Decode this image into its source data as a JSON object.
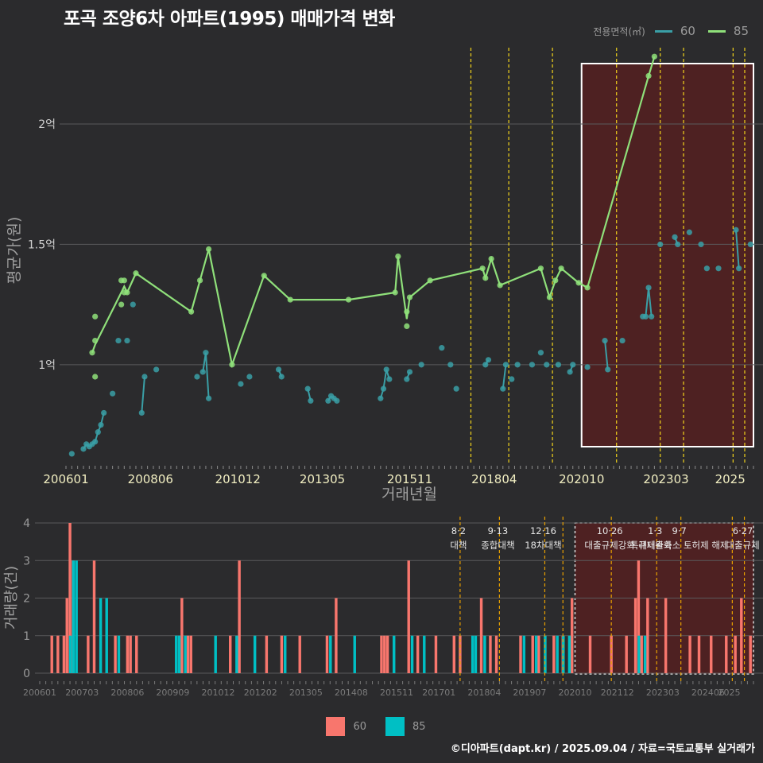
{
  "title": "포곡 조양6차 아파트(1995) 매매가격 변화",
  "credit": "©디아파트(dapt.kr) / 2025.09.04 / 자료=국토교통부 실거래가",
  "colors": {
    "background": "#2b2b2d",
    "grid": "#5a5a5c",
    "area60": "#3a9fa6",
    "area85": "#8fe07a",
    "bar60": "#f8766d",
    "bar85": "#00bfc4",
    "policy": "#f3d41b",
    "highlight": "#6b1a1a"
  },
  "legend_top": {
    "title": "전용면적(㎡)",
    "items": [
      {
        "label": "60",
        "color": "#3a9fa6"
      },
      {
        "label": "85",
        "color": "#8fe07a"
      }
    ]
  },
  "legend_bottom": {
    "items": [
      {
        "label": "60",
        "color": "#f8766d"
      },
      {
        "label": "85",
        "color": "#00bfc4"
      }
    ]
  },
  "chart_data": [
    {
      "type": "line",
      "xlabel": "거래년월",
      "ylabel": "평균가(원)",
      "x_ticks": [
        "200601",
        "200806",
        "201012",
        "201305",
        "201511",
        "201804",
        "202010",
        "202303",
        "2025"
      ],
      "y_ticks": [
        {
          "value": 1.0,
          "label": "1억"
        },
        {
          "value": 1.5,
          "label": "1.5억"
        },
        {
          "value": 2.0,
          "label": "2억"
        }
      ],
      "ylim": [
        0.6,
        2.35
      ],
      "series": [
        {
          "name": "60",
          "points": [
            [
              "2006-03",
              0.63
            ],
            [
              "2006-07",
              0.65
            ],
            [
              "2006-08",
              0.67
            ],
            [
              "2006-09",
              0.66
            ],
            [
              "2006-10",
              0.67
            ],
            [
              "2006-11",
              0.68
            ],
            [
              "2006-12",
              0.72
            ],
            [
              "2007-01",
              0.75
            ],
            [
              "2007-02",
              0.8
            ],
            [
              "2007-05",
              0.88
            ],
            [
              "2007-07",
              1.1
            ],
            [
              "2007-10",
              1.1
            ],
            [
              "2007-12",
              1.25
            ],
            [
              "2008-03",
              0.8
            ],
            [
              "2008-04",
              0.95
            ],
            [
              "2008-08",
              0.98
            ],
            [
              "2009-10",
              0.95
            ],
            [
              "2009-12",
              0.97
            ],
            [
              "2010-01",
              1.05
            ],
            [
              "2010-02",
              0.86
            ],
            [
              "2011-01",
              0.92
            ],
            [
              "2011-04",
              0.95
            ],
            [
              "2012-02",
              0.98
            ],
            [
              "2012-03",
              0.95
            ],
            [
              "2012-12",
              0.9
            ],
            [
              "2013-01",
              0.85
            ],
            [
              "2013-07",
              0.85
            ],
            [
              "2013-08",
              0.87
            ],
            [
              "2013-09",
              0.86
            ],
            [
              "2013-10",
              0.85
            ],
            [
              "2015-01",
              0.86
            ],
            [
              "2015-02",
              0.9
            ],
            [
              "2015-03",
              0.98
            ],
            [
              "2015-04",
              0.94
            ],
            [
              "2015-10",
              0.94
            ],
            [
              "2015-11",
              0.97
            ],
            [
              "2016-03",
              1.0
            ],
            [
              "2016-10",
              1.07
            ],
            [
              "2017-01",
              1.0
            ],
            [
              "2017-03",
              0.9
            ],
            [
              "2018-01",
              1.0
            ],
            [
              "2018-02",
              1.02
            ],
            [
              "2018-07",
              0.9
            ],
            [
              "2018-08",
              1.0
            ],
            [
              "2018-10",
              0.94
            ],
            [
              "2018-12",
              1.0
            ],
            [
              "2019-05",
              1.0
            ],
            [
              "2019-08",
              1.05
            ],
            [
              "2019-10",
              1.0
            ],
            [
              "2020-02",
              1.0
            ],
            [
              "2020-06",
              0.97
            ],
            [
              "2020-07",
              1.0
            ],
            [
              "2020-12",
              0.99
            ],
            [
              "2021-06",
              1.1
            ],
            [
              "2021-07",
              0.98
            ],
            [
              "2021-12",
              1.1
            ],
            [
              "2022-07",
              1.2
            ],
            [
              "2022-08",
              1.2
            ],
            [
              "2022-09",
              1.32
            ],
            [
              "2022-10",
              1.2
            ],
            [
              "2023-01",
              1.5
            ],
            [
              "2023-06",
              1.53
            ],
            [
              "2023-07",
              1.5
            ],
            [
              "2023-11",
              1.55
            ],
            [
              "2024-03",
              1.5
            ],
            [
              "2024-05",
              1.4
            ],
            [
              "2024-09",
              1.4
            ],
            [
              "2025-03",
              1.56
            ],
            [
              "2025-04",
              1.4
            ],
            [
              "2025-08",
              1.5
            ]
          ]
        },
        {
          "name": "85",
          "points": [
            [
              "2006-10",
              1.05
            ],
            [
              "2006-11",
              1.1
            ],
            [
              "2006-11",
              1.2
            ],
            [
              "2006-11",
              0.95
            ],
            [
              "2007-09",
              1.3
            ],
            [
              "2007-08",
              1.25
            ],
            [
              "2007-08",
              1.35
            ],
            [
              "2007-09",
              1.35
            ],
            [
              "2007-10",
              1.3
            ],
            [
              "2008-01",
              1.38
            ],
            [
              "2009-08",
              1.22
            ],
            [
              "2009-11",
              1.35
            ],
            [
              "2010-02",
              1.48
            ],
            [
              "2010-10",
              1.0
            ],
            [
              "2011-09",
              1.37
            ],
            [
              "2012-06",
              1.27
            ],
            [
              "2014-02",
              1.27
            ],
            [
              "2015-06",
              1.3
            ],
            [
              "2015-07",
              1.45
            ],
            [
              "2015-10",
              1.22
            ],
            [
              "2015-10",
              1.16
            ],
            [
              "2015-11",
              1.28
            ],
            [
              "2016-06",
              1.35
            ],
            [
              "2017-12",
              1.4
            ],
            [
              "2018-01",
              1.36
            ],
            [
              "2018-03",
              1.44
            ],
            [
              "2018-06",
              1.33
            ],
            [
              "2019-08",
              1.4
            ],
            [
              "2019-11",
              1.28
            ],
            [
              "2020-01",
              1.35
            ],
            [
              "2020-03",
              1.4
            ],
            [
              "2020-09",
              1.34
            ],
            [
              "2020-12",
              1.32
            ],
            [
              "2022-09",
              2.2
            ],
            [
              "2022-11",
              2.28
            ]
          ]
        }
      ],
      "policy_lines": [
        "2017-08",
        "2018-09",
        "2019-12",
        "2021-10",
        "2023-01",
        "2023-09",
        "2025-02",
        "2025-06"
      ],
      "highlight": {
        "start": "2020-10",
        "end": "2025-09"
      }
    },
    {
      "type": "bar",
      "xlabel": "",
      "ylabel": "거래량(건)",
      "x_ticks": [
        "200601",
        "200703",
        "200806",
        "200909",
        "201012",
        "201202",
        "201305",
        "201408",
        "201511",
        "201701",
        "201804",
        "201907",
        "202010",
        "202112",
        "202303",
        "202406",
        "2025"
      ],
      "y_ticks": [
        0,
        1,
        2,
        3,
        4
      ],
      "ylim": [
        0,
        4.2
      ],
      "series": [
        {
          "name": "60",
          "bars": [
            [
              "2006-05",
              1
            ],
            [
              "2006-07",
              1
            ],
            [
              "2006-09",
              1
            ],
            [
              "2006-10",
              2
            ],
            [
              "2006-11",
              4
            ],
            [
              "2006-12",
              3
            ],
            [
              "2007-05",
              1
            ],
            [
              "2007-07",
              3
            ],
            [
              "2008-02",
              1
            ],
            [
              "2008-06",
              1
            ],
            [
              "2008-07",
              1
            ],
            [
              "2008-09",
              1
            ],
            [
              "2009-12",
              2
            ],
            [
              "2010-02",
              1
            ],
            [
              "2010-03",
              1
            ],
            [
              "2011-04",
              1
            ],
            [
              "2011-07",
              3
            ],
            [
              "2012-04",
              1
            ],
            [
              "2012-09",
              1
            ],
            [
              "2013-03",
              1
            ],
            [
              "2013-12",
              1
            ],
            [
              "2014-03",
              2
            ],
            [
              "2015-06",
              1
            ],
            [
              "2015-07",
              1
            ],
            [
              "2015-08",
              1
            ],
            [
              "2016-03",
              3
            ],
            [
              "2016-06",
              1
            ],
            [
              "2016-12",
              1
            ],
            [
              "2017-06",
              1
            ],
            [
              "2017-08",
              1
            ],
            [
              "2018-03",
              2
            ],
            [
              "2018-06",
              1
            ],
            [
              "2018-08",
              1
            ],
            [
              "2019-04",
              1
            ],
            [
              "2019-08",
              1
            ],
            [
              "2019-10",
              1
            ],
            [
              "2020-03",
              1
            ],
            [
              "2020-06",
              1
            ],
            [
              "2020-09",
              2
            ],
            [
              "2021-03",
              1
            ],
            [
              "2021-10",
              1
            ],
            [
              "2022-03",
              1
            ],
            [
              "2022-06",
              2
            ],
            [
              "2022-07",
              3
            ],
            [
              "2022-08",
              1
            ],
            [
              "2022-10",
              2
            ],
            [
              "2023-04",
              2
            ],
            [
              "2023-12",
              1
            ],
            [
              "2024-03",
              1
            ],
            [
              "2024-07",
              1
            ],
            [
              "2024-12",
              1
            ],
            [
              "2025-03",
              1
            ],
            [
              "2025-05",
              2
            ],
            [
              "2025-08",
              1
            ]
          ]
        },
        {
          "name": "85",
          "bars": [
            [
              "2006-11",
              1
            ],
            [
              "2006-12",
              3
            ],
            [
              "2007-01",
              3
            ],
            [
              "2007-09",
              2
            ],
            [
              "2007-11",
              2
            ],
            [
              "2008-03",
              1
            ],
            [
              "2009-10",
              1
            ],
            [
              "2009-11",
              1
            ],
            [
              "2010-01",
              1
            ],
            [
              "2010-11",
              1
            ],
            [
              "2011-06",
              1
            ],
            [
              "2011-12",
              1
            ],
            [
              "2012-10",
              1
            ],
            [
              "2014-01",
              1
            ],
            [
              "2014-09",
              1
            ],
            [
              "2015-10",
              1
            ],
            [
              "2016-04",
              1
            ],
            [
              "2016-08",
              1
            ],
            [
              "2017-12",
              1
            ],
            [
              "2018-01",
              1
            ],
            [
              "2018-04",
              1
            ],
            [
              "2019-05",
              1
            ],
            [
              "2019-09",
              1
            ],
            [
              "2019-12",
              1
            ],
            [
              "2020-04",
              1
            ],
            [
              "2020-06",
              1
            ],
            [
              "2020-08",
              1
            ],
            [
              "2022-07",
              1
            ],
            [
              "2022-09",
              1
            ]
          ]
        }
      ],
      "policy_lines": [
        {
          "date": "2017-08",
          "label": "8·2 대책"
        },
        {
          "date": "2018-09",
          "label": "9·13 종합대책"
        },
        {
          "date": "2019-12",
          "label": "12·16 18차대책"
        },
        {
          "date": "2020-06",
          "label": ""
        },
        {
          "date": "2021-10",
          "label": "10·26 대출규제강화"
        },
        {
          "date": "2023-01",
          "label": "1·3 규제완화"
        },
        {
          "date": "2023-09",
          "label": "9·7 특례대출축소 토허제 해제"
        },
        {
          "date": "2025-02",
          "label": ""
        },
        {
          "date": "2025-06",
          "label": "6·27 대출규제"
        }
      ],
      "highlight": {
        "start": "2020-10",
        "end": "2025-09"
      }
    }
  ]
}
